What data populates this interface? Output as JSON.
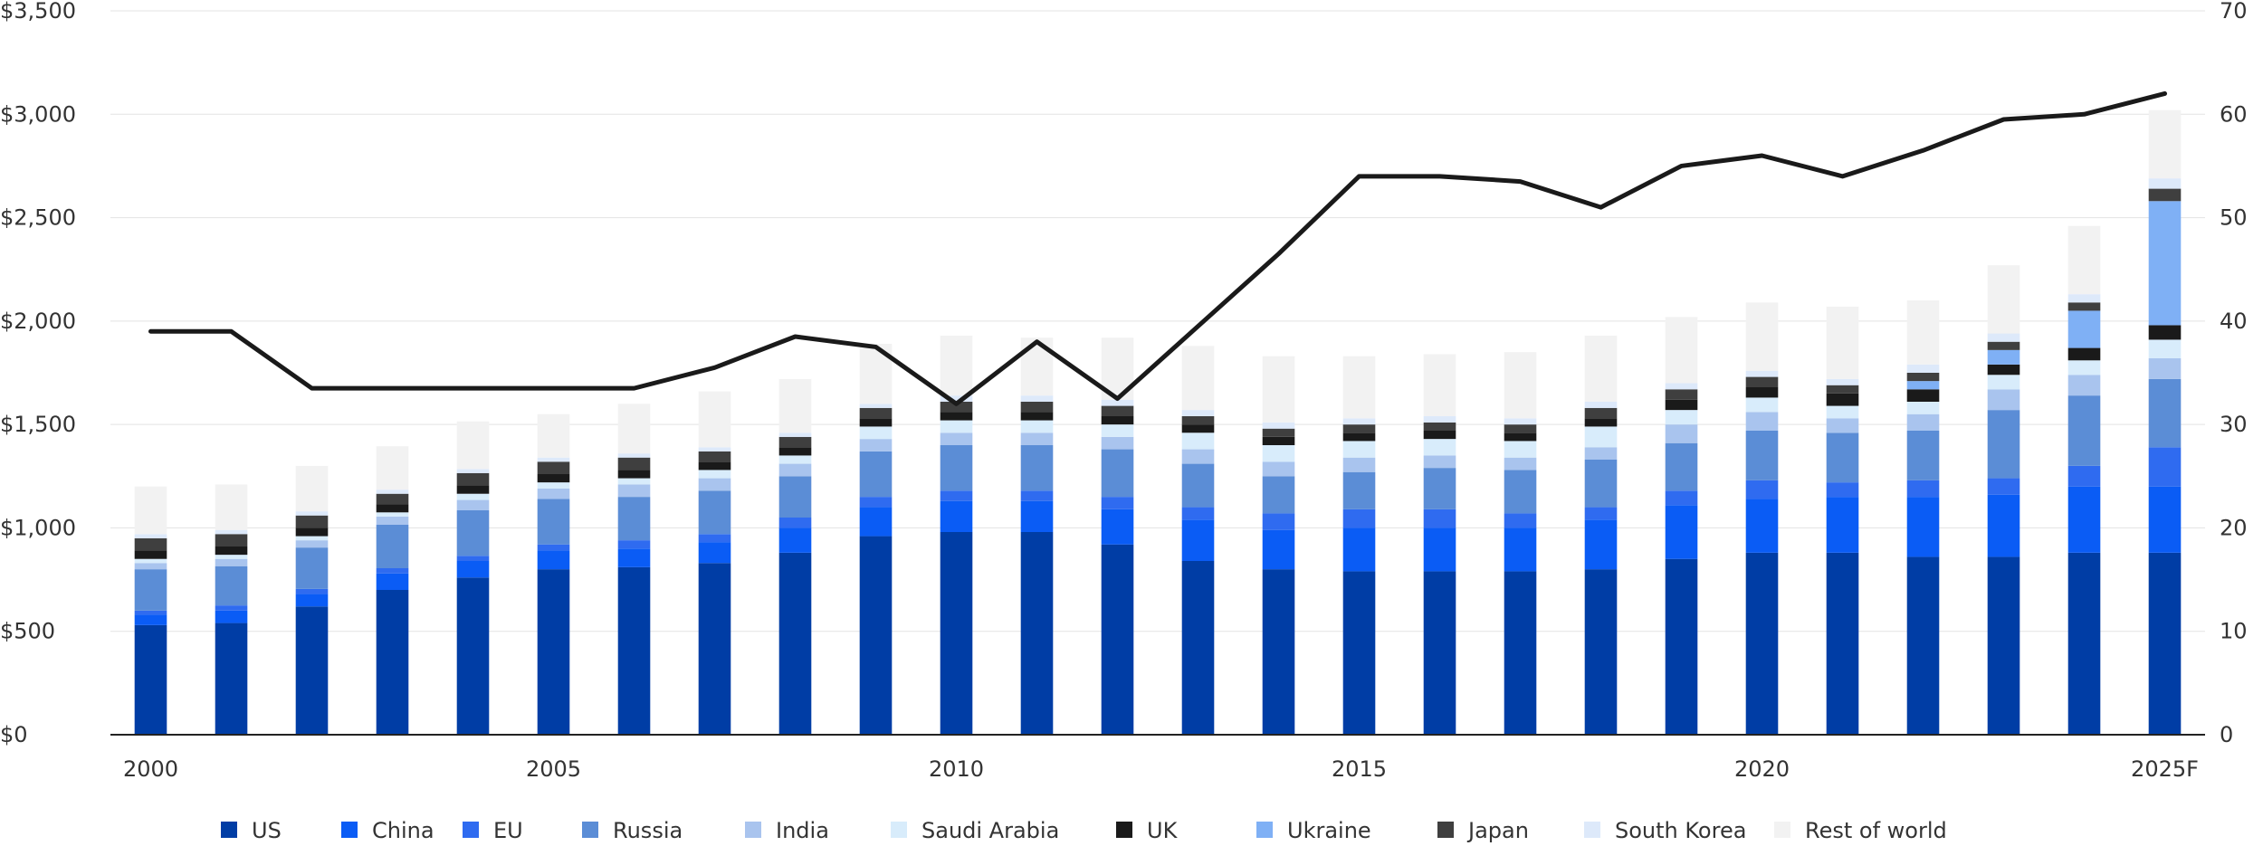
{
  "chart_data": {
    "type": "bar",
    "stacked": true,
    "categories": [
      "2000",
      "2001",
      "2002",
      "2003",
      "2004",
      "2005",
      "2006",
      "2007",
      "2008",
      "2009",
      "2010",
      "2011",
      "2012",
      "2013",
      "2014",
      "2015",
      "2016",
      "2017",
      "2018",
      "2019",
      "2020",
      "2021",
      "2022",
      "2023",
      "2024",
      "2025F"
    ],
    "x_tick_labels": [
      "2000",
      "2005",
      "2010",
      "2015",
      "2020",
      "2025F"
    ],
    "y_left": {
      "min": 0,
      "max": 3500,
      "ticks": [
        0,
        500,
        1000,
        1500,
        2000,
        2500,
        3000,
        3500
      ],
      "tick_labels": [
        "$0",
        "$500",
        "$1,000",
        "$1,500",
        "$2,000",
        "$2,500",
        "$3,000",
        "$3,500"
      ]
    },
    "y_right": {
      "min": 0,
      "max": 70,
      "ticks": [
        0,
        10,
        20,
        30,
        40,
        50,
        60,
        70
      ],
      "tick_labels": [
        "0",
        "10",
        "20",
        "30",
        "40",
        "50",
        "60",
        "70"
      ]
    },
    "grid": "horizontal",
    "legend_position": "bottom",
    "series": [
      {
        "name": "US",
        "color": "#003DA5",
        "values": [
          530,
          540,
          620,
          700,
          760,
          800,
          810,
          830,
          880,
          960,
          980,
          980,
          920,
          840,
          800,
          790,
          790,
          790,
          800,
          850,
          880,
          880,
          860,
          860,
          880,
          880
        ]
      },
      {
        "name": "China",
        "color": "#0A5CF5",
        "values": [
          50,
          60,
          60,
          80,
          80,
          90,
          90,
          100,
          120,
          140,
          150,
          150,
          170,
          200,
          190,
          210,
          210,
          210,
          240,
          260,
          260,
          270,
          290,
          300,
          320,
          320
        ]
      },
      {
        "name": "EU",
        "color": "#2F6BF0",
        "values": [
          20,
          25,
          25,
          25,
          25,
          30,
          40,
          40,
          50,
          50,
          50,
          50,
          60,
          60,
          80,
          90,
          90,
          70,
          60,
          70,
          90,
          70,
          80,
          80,
          100,
          190
        ]
      },
      {
        "name": "Russia",
        "color": "#5B8DD6",
        "values": [
          200,
          190,
          200,
          210,
          220,
          220,
          210,
          210,
          200,
          220,
          220,
          220,
          230,
          210,
          180,
          180,
          200,
          210,
          230,
          230,
          240,
          240,
          240,
          330,
          340,
          330
        ]
      },
      {
        "name": "India",
        "color": "#A9C4EE",
        "values": [
          30,
          35,
          35,
          40,
          50,
          50,
          60,
          60,
          60,
          60,
          60,
          60,
          60,
          70,
          70,
          70,
          60,
          60,
          60,
          90,
          90,
          70,
          80,
          100,
          100,
          100
        ]
      },
      {
        "name": "Saudi Arabia",
        "color": "#D8ECFB",
        "values": [
          20,
          20,
          20,
          20,
          30,
          30,
          30,
          40,
          40,
          60,
          60,
          60,
          60,
          80,
          80,
          80,
          80,
          80,
          100,
          70,
          70,
          60,
          60,
          70,
          70,
          90
        ]
      },
      {
        "name": "UK",
        "color": "#1A1A1A",
        "values": [
          40,
          40,
          40,
          40,
          40,
          40,
          40,
          40,
          40,
          40,
          40,
          40,
          40,
          40,
          40,
          40,
          40,
          40,
          40,
          50,
          50,
          60,
          60,
          50,
          60,
          70
        ]
      },
      {
        "name": "Ukraine",
        "color": "#7FB0F5",
        "values": [
          0,
          0,
          0,
          0,
          0,
          0,
          0,
          0,
          0,
          0,
          0,
          0,
          0,
          0,
          0,
          0,
          0,
          0,
          0,
          0,
          0,
          0,
          40,
          70,
          180,
          600
        ]
      },
      {
        "name": "Japan",
        "color": "#3F3F3F",
        "values": [
          60,
          60,
          60,
          50,
          60,
          60,
          60,
          50,
          50,
          50,
          50,
          50,
          50,
          40,
          40,
          40,
          40,
          40,
          50,
          50,
          50,
          40,
          40,
          40,
          40,
          60
        ]
      },
      {
        "name": "South Korea",
        "color": "#DDE9FA",
        "values": [
          20,
          20,
          20,
          20,
          20,
          20,
          20,
          20,
          20,
          20,
          30,
          30,
          30,
          30,
          30,
          30,
          30,
          30,
          30,
          30,
          30,
          30,
          40,
          40,
          40,
          50
        ]
      },
      {
        "name": "Rest of world",
        "color": "#F2F2F2",
        "values": [
          230,
          220,
          220,
          210,
          230,
          210,
          240,
          270,
          260,
          290,
          290,
          280,
          300,
          310,
          320,
          300,
          300,
          320,
          320,
          320,
          330,
          350,
          310,
          330,
          330,
          330
        ]
      }
    ],
    "line_series": {
      "axis": "right",
      "color": "#1A1A1A",
      "values": [
        39,
        39,
        33.5,
        33.5,
        33.5,
        33.5,
        33.5,
        35.5,
        38.5,
        37.5,
        32,
        38,
        32.5,
        39.5,
        46.5,
        54,
        54,
        53.5,
        51,
        55,
        56,
        54,
        56.5,
        59.5,
        60,
        62
      ]
    }
  }
}
